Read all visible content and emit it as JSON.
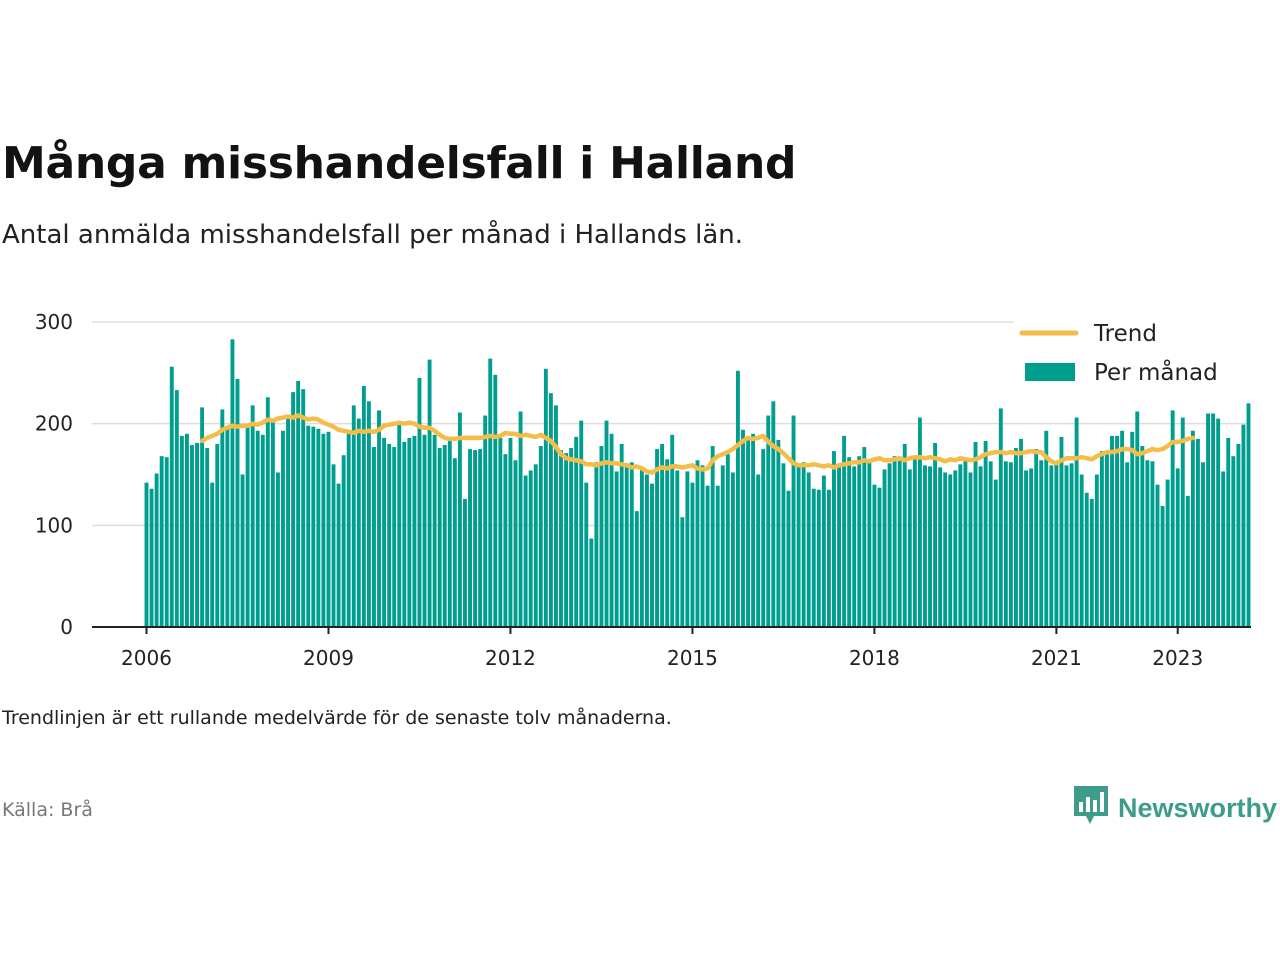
{
  "title": "Många misshandelsfall i Halland",
  "subtitle": "Antal anmälda misshandelsfall per månad i Hallands län.",
  "note": "Trendlinjen är ett rullande medelvärde för de senaste tolv månaderna.",
  "source": "Källa: Brå",
  "brand": {
    "name": "Newsworthy",
    "color": "#3d9c8a",
    "icon": "bar-chart-icon"
  },
  "colors": {
    "bars": "#009e8f",
    "trend": "#f4bd4a",
    "grid": "#dddddd",
    "axis": "#222222"
  },
  "chart_data": {
    "type": "bar",
    "title": "Många misshandelsfall i Halland",
    "subtitle": "Antal anmälda misshandelsfall per månad i Hallands län.",
    "xlabel": "",
    "ylabel": "",
    "ylim": [
      0,
      300
    ],
    "y_ticks": [
      0,
      100,
      200,
      300
    ],
    "x_ticks": [
      "2006",
      "2009",
      "2012",
      "2015",
      "2018",
      "2021",
      "2023"
    ],
    "grid": true,
    "legend": {
      "position": "top-right",
      "entries": [
        "Trend",
        "Per månad"
      ]
    },
    "start": "2006-01",
    "series": [
      {
        "name": "Per månad",
        "type": "bar",
        "values": [
          142,
          136,
          151,
          168,
          167,
          256,
          233,
          188,
          190,
          179,
          181,
          216,
          176,
          142,
          180,
          214,
          196,
          283,
          244,
          150,
          198,
          218,
          193,
          189,
          226,
          202,
          152,
          193,
          209,
          231,
          242,
          234,
          198,
          197,
          195,
          190,
          192,
          160,
          141,
          169,
          192,
          218,
          205,
          237,
          222,
          177,
          213,
          186,
          180,
          177,
          201,
          182,
          186,
          188,
          245,
          189,
          263,
          189,
          176,
          179,
          187,
          166,
          211,
          126,
          175,
          174,
          175,
          208,
          264,
          248,
          186,
          170,
          186,
          164,
          212,
          149,
          154,
          160,
          178,
          254,
          230,
          218,
          174,
          171,
          176,
          187,
          203,
          142,
          87,
          162,
          178,
          203,
          190,
          153,
          180,
          161,
          162,
          114,
          155,
          150,
          141,
          175,
          180,
          165,
          189,
          154,
          108,
          153,
          142,
          164,
          159,
          139,
          178,
          139,
          159,
          170,
          152,
          252,
          194,
          187,
          190,
          150,
          175,
          208,
          222,
          184,
          161,
          134,
          208,
          160,
          162,
          152,
          136,
          135,
          149,
          135,
          173,
          160,
          188,
          167,
          158,
          168,
          177,
          164,
          140,
          137,
          155,
          161,
          168,
          166,
          180,
          155,
          165,
          206,
          159,
          158,
          181,
          157,
          152,
          150,
          154,
          160,
          164,
          152,
          182,
          158,
          183,
          163,
          145,
          215,
          163,
          162,
          176,
          185,
          154,
          156,
          175,
          164,
          193,
          159,
          161,
          187,
          159,
          161,
          206,
          150,
          132,
          126,
          150,
          173,
          172,
          188,
          188,
          193,
          162,
          192,
          212,
          178,
          164,
          163,
          140,
          119,
          145,
          213,
          156,
          206,
          129,
          193,
          185,
          162,
          210,
          210,
          205,
          153,
          186,
          168,
          180,
          199,
          220
        ]
      },
      {
        "name": "Trend",
        "type": "line",
        "start_index": 11,
        "values": [
          183,
          186,
          188,
          190,
          194,
          196,
          198,
          197,
          198,
          198,
          200,
          199,
          201,
          204,
          203,
          205,
          206,
          207,
          206,
          208,
          206,
          204,
          205,
          204,
          201,
          199,
          197,
          194,
          193,
          192,
          191,
          193,
          192,
          193,
          192,
          194,
          198,
          199,
          200,
          201,
          200,
          201,
          200,
          197,
          196,
          196,
          193,
          189,
          186,
          185,
          185,
          186,
          186,
          186,
          186,
          186,
          187,
          188,
          187,
          188,
          191,
          190,
          190,
          188,
          189,
          188,
          187,
          189,
          186,
          183,
          177,
          170,
          166,
          165,
          164,
          163,
          160,
          160,
          159,
          161,
          162,
          161,
          161,
          160,
          159,
          157,
          158,
          156,
          153,
          152,
          155,
          157,
          156,
          158,
          158,
          157,
          158,
          159,
          156,
          155,
          156,
          164,
          168,
          170,
          172,
          175,
          179,
          183,
          186,
          185,
          186,
          188,
          182,
          178,
          175,
          171,
          166,
          161,
          159,
          159,
          159,
          160,
          159,
          158,
          159,
          157,
          159,
          160,
          161,
          162,
          162,
          164,
          163,
          165,
          166,
          164,
          164,
          165,
          166,
          164,
          166,
          167,
          167,
          166,
          167,
          166,
          165,
          163,
          165,
          164,
          166,
          165,
          164,
          165,
          167,
          170,
          171,
          172,
          172,
          171,
          172,
          171,
          171,
          172,
          173,
          172,
          172,
          167,
          163,
          161,
          164,
          166,
          166,
          166,
          167,
          166,
          165,
          168,
          170,
          172,
          172,
          173,
          175,
          175,
          174,
          170,
          171,
          173,
          175,
          174,
          175,
          178,
          182,
          182,
          183,
          185,
          186
        ]
      }
    ]
  }
}
